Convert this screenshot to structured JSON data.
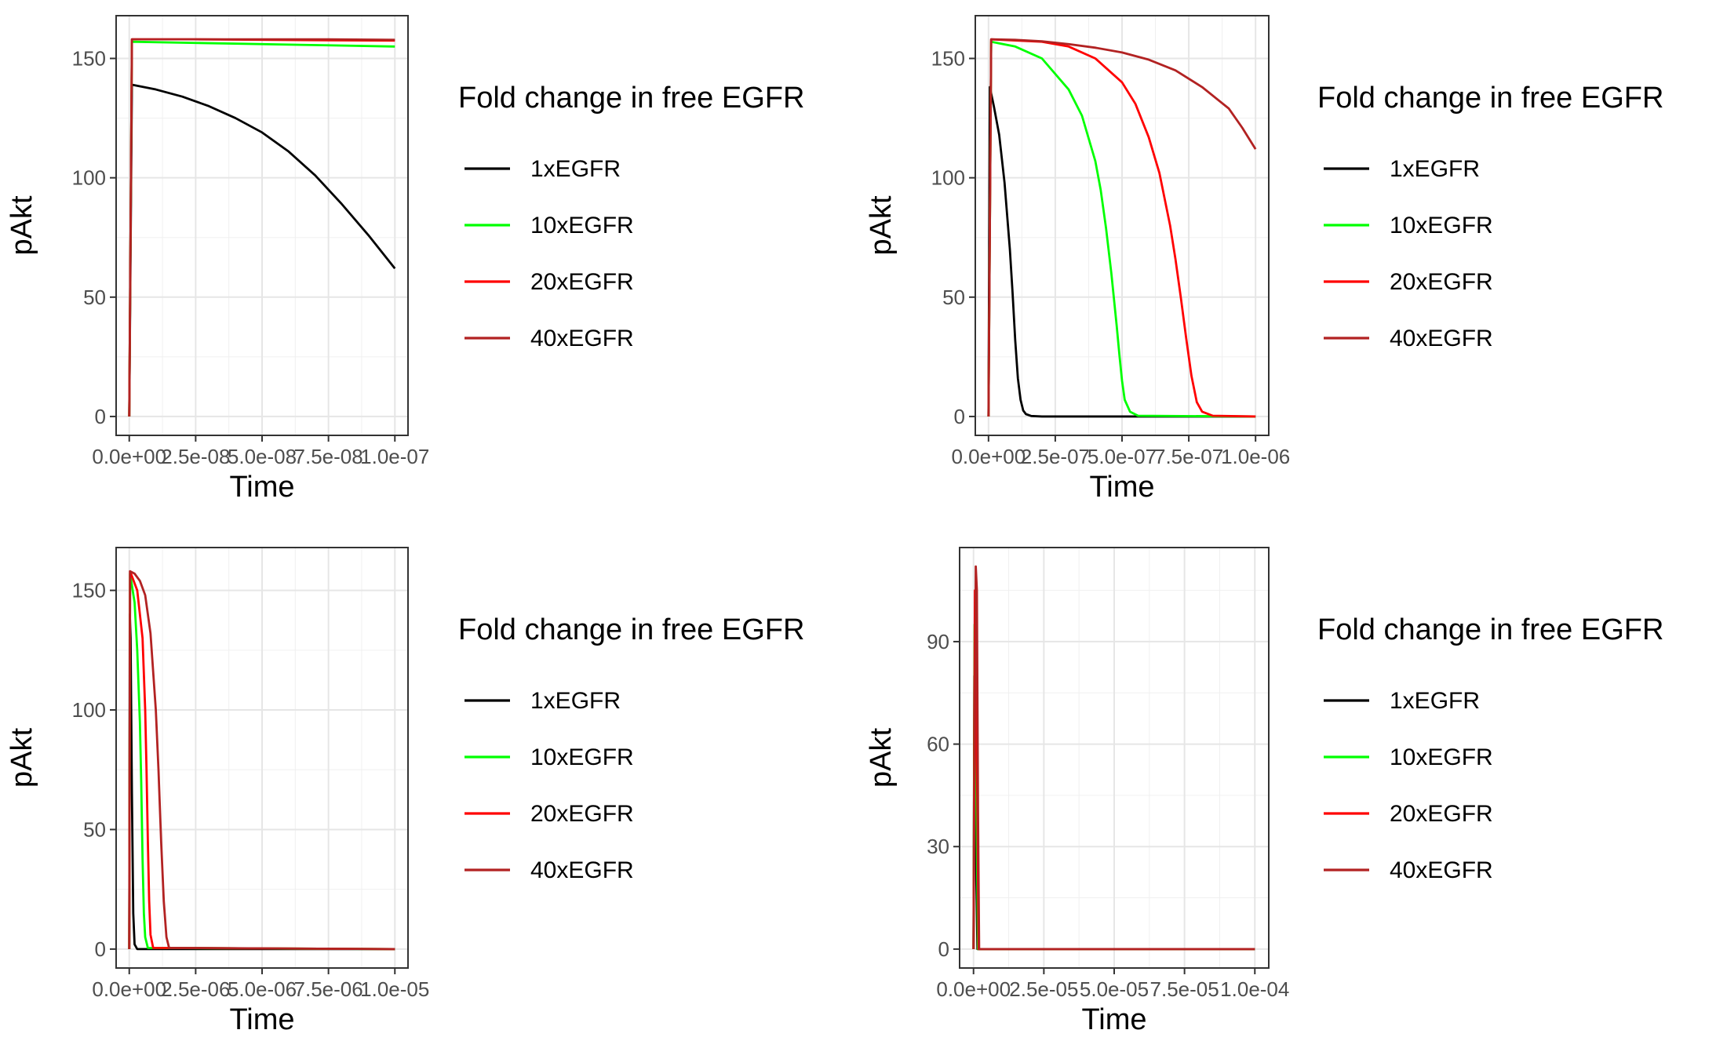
{
  "chart_data": [
    {
      "type": "line",
      "xlabel": "Time",
      "ylabel": "pAkt",
      "xlim": [
        0,
        1e-07
      ],
      "ylim": [
        0,
        160
      ],
      "x_ticks": [
        0,
        2.5e-08,
        5e-08,
        7.5e-08,
        1e-07
      ],
      "x_tick_labels": [
        "0.0e+00",
        "2.5e-08",
        "5.0e-08",
        "7.5e-08",
        "1.0e-07"
      ],
      "y_ticks": [
        0,
        50,
        100,
        150
      ],
      "y_tick_labels": [
        "0",
        "50",
        "100",
        "150"
      ],
      "grid": true,
      "legend": {
        "title": "Fold change in free EGFR",
        "position": "right"
      },
      "series": [
        {
          "name": "1xEGFR",
          "color": "#000000",
          "x": [
            0,
            1e-09,
            1e-08,
            2e-08,
            3e-08,
            4e-08,
            5e-08,
            6e-08,
            7e-08,
            8e-08,
            9e-08,
            1e-07
          ],
          "y": [
            0,
            139,
            137,
            134,
            130,
            125,
            119,
            111,
            101,
            89,
            76,
            62
          ]
        },
        {
          "name": "10xEGFR",
          "color": "#00ff00",
          "x": [
            0,
            1e-09,
            2.5e-08,
            5e-08,
            7.5e-08,
            1e-07
          ],
          "y": [
            0,
            157,
            156.5,
            156,
            155.5,
            155
          ]
        },
        {
          "name": "20xEGFR",
          "color": "#ff0000",
          "x": [
            0,
            1e-09,
            2.5e-08,
            5e-08,
            7.5e-08,
            1e-07
          ],
          "y": [
            0,
            158,
            158,
            157.8,
            157.6,
            157.5
          ]
        },
        {
          "name": "40xEGFR",
          "color": "#b22222",
          "x": [
            0,
            1e-09,
            2.5e-08,
            5e-08,
            7.5e-08,
            1e-07
          ],
          "y": [
            0,
            158,
            158,
            158,
            158,
            157.8
          ]
        }
      ]
    },
    {
      "type": "line",
      "xlabel": "Time",
      "ylabel": "pAkt",
      "xlim": [
        0,
        1e-06
      ],
      "ylim": [
        0,
        160
      ],
      "x_ticks": [
        0,
        2.5e-07,
        5e-07,
        7.5e-07,
        1e-06
      ],
      "x_tick_labels": [
        "0.0e+00",
        "2.5e-07",
        "5.0e-07",
        "7.5e-07",
        "1.0e-06"
      ],
      "y_ticks": [
        0,
        50,
        100,
        150
      ],
      "y_tick_labels": [
        "0",
        "50",
        "100",
        "150"
      ],
      "grid": true,
      "legend": {
        "title": "Fold change in free EGFR",
        "position": "right"
      },
      "series": [
        {
          "name": "1xEGFR",
          "color": "#000000",
          "x": [
            0,
            5e-09,
            2e-08,
            4e-08,
            6e-08,
            8e-08,
            9e-08,
            1e-07,
            1.1e-07,
            1.2e-07,
            1.3e-07,
            1.4e-07,
            1.6e-07,
            2e-07,
            1e-06
          ],
          "y": [
            0,
            138,
            130,
            118,
            98,
            70,
            52,
            32,
            16,
            7,
            2.5,
            1,
            0.2,
            0,
            0
          ]
        },
        {
          "name": "10xEGFR",
          "color": "#00ff00",
          "x": [
            0,
            1e-08,
            1e-07,
            2e-07,
            3e-07,
            3.5e-07,
            4e-07,
            4.2e-07,
            4.4e-07,
            4.6e-07,
            4.8e-07,
            4.9e-07,
            5e-07,
            5.1e-07,
            5.3e-07,
            5.6e-07,
            1e-06
          ],
          "y": [
            0,
            157,
            155,
            150,
            137,
            126,
            107,
            95,
            79,
            60,
            38,
            26,
            15,
            7,
            2,
            0.3,
            0
          ]
        },
        {
          "name": "20xEGFR",
          "color": "#ff0000",
          "x": [
            0,
            1e-08,
            2e-07,
            3e-07,
            4e-07,
            5e-07,
            5.5e-07,
            6e-07,
            6.4e-07,
            6.8e-07,
            7e-07,
            7.2e-07,
            7.4e-07,
            7.6e-07,
            7.8e-07,
            8e-07,
            8.4e-07,
            1e-06
          ],
          "y": [
            0,
            158,
            157,
            155,
            150,
            140,
            131,
            117,
            102,
            80,
            66,
            50,
            33,
            17,
            6,
            2,
            0.3,
            0
          ]
        },
        {
          "name": "40xEGFR",
          "color": "#b22222",
          "x": [
            0,
            1e-08,
            1e-07,
            2e-07,
            3e-07,
            4e-07,
            5e-07,
            6e-07,
            7e-07,
            8e-07,
            9e-07,
            9.5e-07,
            1e-06
          ],
          "y": [
            0,
            158,
            157.8,
            157.2,
            156,
            154.5,
            152.5,
            149.5,
            145,
            138,
            129,
            121,
            112
          ]
        }
      ]
    },
    {
      "type": "line",
      "xlabel": "Time",
      "ylabel": "pAkt",
      "xlim": [
        0,
        1e-05
      ],
      "ylim": [
        0,
        160
      ],
      "x_ticks": [
        0,
        2.5e-06,
        5e-06,
        7.5e-06,
        1e-05
      ],
      "x_tick_labels": [
        "0.0e+00",
        "2.5e-06",
        "5.0e-06",
        "7.5e-06",
        "1.0e-05"
      ],
      "y_ticks": [
        0,
        50,
        100,
        150
      ],
      "y_tick_labels": [
        "0",
        "50",
        "100",
        "150"
      ],
      "grid": true,
      "legend": {
        "title": "Fold change in free EGFR",
        "position": "right"
      },
      "series": [
        {
          "name": "1xEGFR",
          "color": "#000000",
          "x": [
            0,
            2e-08,
            5e-08,
            1e-07,
            1.5e-07,
            2e-07,
            3e-07,
            1e-05
          ],
          "y": [
            0,
            140,
            130,
            65,
            15,
            2,
            0,
            0
          ]
        },
        {
          "name": "10xEGFR",
          "color": "#00ff00",
          "x": [
            0,
            3e-08,
            2e-07,
            3e-07,
            4e-07,
            4.5e-07,
            5e-07,
            5.5e-07,
            6e-07,
            7e-07,
            1e-05
          ],
          "y": [
            0,
            157,
            145,
            125,
            95,
            70,
            38,
            15,
            5,
            0.5,
            0
          ]
        },
        {
          "name": "20xEGFR",
          "color": "#ff0000",
          "x": [
            0,
            3e-08,
            3e-07,
            5e-07,
            6e-07,
            6.5e-07,
            7e-07,
            7.5e-07,
            8e-07,
            9e-07,
            1e-05
          ],
          "y": [
            0,
            158,
            150,
            130,
            100,
            75,
            45,
            20,
            6,
            0.5,
            0
          ]
        },
        {
          "name": "40xEGFR",
          "color": "#b22222",
          "x": [
            0,
            3e-08,
            2e-07,
            4e-07,
            6e-07,
            8e-07,
            1e-06,
            1.1e-06,
            1.2e-06,
            1.3e-06,
            1.4e-06,
            1.5e-06,
            1e-05
          ],
          "y": [
            0,
            158,
            157,
            154,
            148,
            132,
            100,
            75,
            45,
            20,
            5,
            0.5,
            0
          ]
        }
      ]
    },
    {
      "type": "line",
      "xlabel": "Time",
      "ylabel": "pAkt",
      "xlim": [
        0,
        0.0001
      ],
      "ylim": [
        0,
        112
      ],
      "x_ticks": [
        0,
        2.5e-05,
        5e-05,
        7.5e-05,
        0.0001
      ],
      "x_tick_labels": [
        "0.0e+00",
        "2.5e-05",
        "5.0e-05",
        "7.5e-05",
        "1.0e-04"
      ],
      "y_ticks": [
        0,
        30,
        60,
        90
      ],
      "y_tick_labels": [
        "0",
        "30",
        "60",
        "90"
      ],
      "grid": true,
      "legend": {
        "title": "Fold change in free EGFR",
        "position": "right"
      },
      "series": [
        {
          "name": "1xEGFR",
          "color": "#000000",
          "x": [
            0,
            3e-07,
            1e-06,
            1.4e-06,
            0.0001
          ],
          "y": [
            0,
            80,
            20,
            0,
            0
          ]
        },
        {
          "name": "10xEGFR",
          "color": "#00ff00",
          "x": [
            0,
            4e-07,
            1.2e-06,
            1.6e-06,
            0.0001
          ],
          "y": [
            0,
            95,
            30,
            0,
            0
          ]
        },
        {
          "name": "20xEGFR",
          "color": "#ff0000",
          "x": [
            0,
            5e-07,
            1.4e-06,
            1.8e-06,
            0.0001
          ],
          "y": [
            0,
            105,
            40,
            0,
            0
          ]
        },
        {
          "name": "40xEGFR",
          "color": "#b22222",
          "x": [
            0,
            8e-07,
            1.2e-06,
            1.6e-06,
            2e-06,
            0.0001
          ],
          "y": [
            0,
            112,
            105,
            40,
            0,
            0
          ]
        }
      ]
    }
  ]
}
